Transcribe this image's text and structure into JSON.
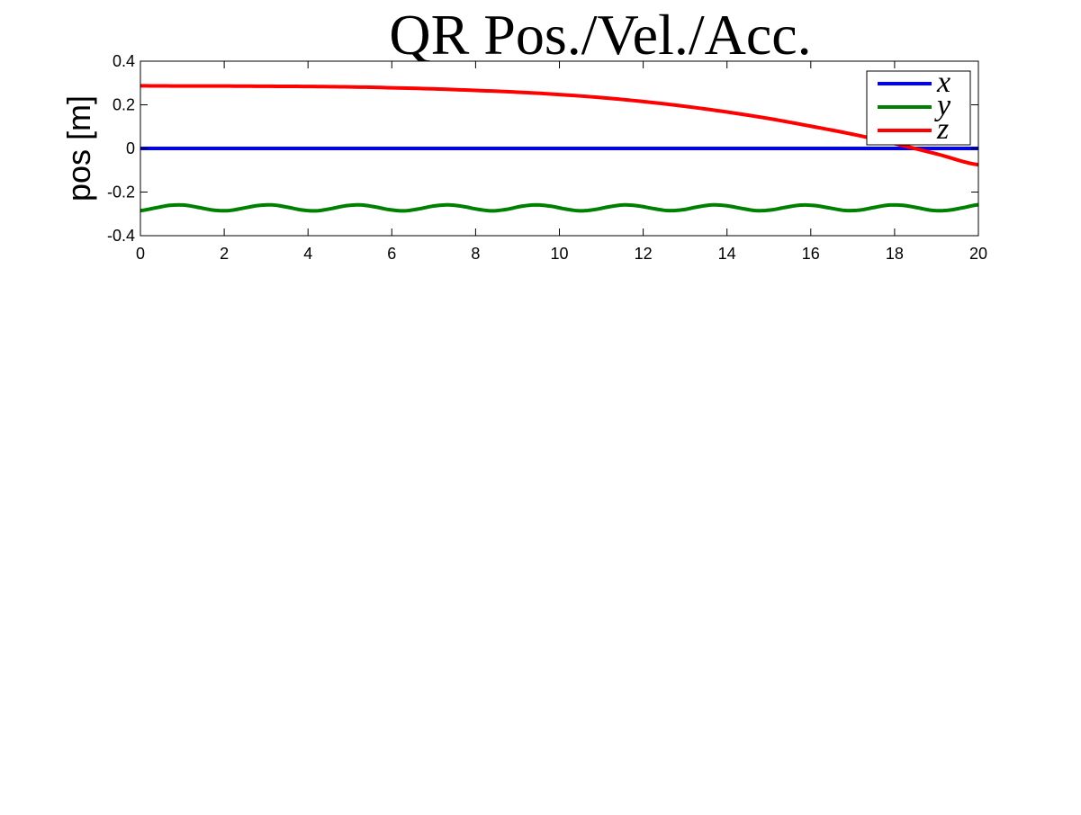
{
  "chart_data": {
    "type": "line",
    "title": "QR Pos./Vel./Acc.",
    "xlabel": "",
    "ylabel": "pos [m]",
    "xlim": [
      0,
      20
    ],
    "ylim": [
      -0.4,
      0.4
    ],
    "x_ticks": [
      0,
      2,
      4,
      6,
      8,
      10,
      12,
      14,
      16,
      18,
      20
    ],
    "x_tick_labels": [
      "0",
      "2",
      "4",
      "6",
      "8",
      "10",
      "12",
      "14",
      "16",
      "18",
      "20"
    ],
    "y_ticks": [
      -0.4,
      -0.2,
      0,
      0.2,
      0.4
    ],
    "y_tick_labels": [
      "-0.4",
      "-0.2",
      "0",
      "0.2",
      "0.4"
    ],
    "grid": false,
    "legend_position": "top-right",
    "series": [
      {
        "name": "x",
        "color": "#0000ff",
        "x": [
          0,
          20
        ],
        "y": [
          0,
          0
        ]
      },
      {
        "name": "y",
        "color": "#008000",
        "x": [
          0,
          0.35,
          0.7,
          1.05,
          1.4,
          1.75,
          2.1,
          2.45,
          2.8,
          3.15,
          3.5,
          3.85,
          4.2,
          4.55,
          4.9,
          5.25,
          5.6,
          5.95,
          6.3,
          6.65,
          7.0,
          7.35,
          7.7,
          8.05,
          8.4,
          8.75,
          9.1,
          9.45,
          9.8,
          10.15,
          10.5,
          10.85,
          11.2,
          11.55,
          11.9,
          12.25,
          12.6,
          12.95,
          13.3,
          13.65,
          14.0,
          14.35,
          14.7,
          15.05,
          15.4,
          15.75,
          16.1,
          16.45,
          16.8,
          17.15,
          17.5,
          17.85,
          18.2,
          18.55,
          18.9,
          19.25,
          19.6,
          20.0
        ],
        "y": [
          -0.285,
          -0.273,
          -0.261,
          -0.26,
          -0.271,
          -0.283,
          -0.285,
          -0.274,
          -0.262,
          -0.259,
          -0.269,
          -0.282,
          -0.286,
          -0.276,
          -0.263,
          -0.259,
          -0.268,
          -0.281,
          -0.286,
          -0.277,
          -0.264,
          -0.259,
          -0.266,
          -0.279,
          -0.286,
          -0.279,
          -0.265,
          -0.259,
          -0.265,
          -0.278,
          -0.286,
          -0.28,
          -0.267,
          -0.259,
          -0.264,
          -0.276,
          -0.285,
          -0.281,
          -0.268,
          -0.259,
          -0.263,
          -0.275,
          -0.285,
          -0.282,
          -0.27,
          -0.26,
          -0.262,
          -0.273,
          -0.284,
          -0.283,
          -0.271,
          -0.26,
          -0.261,
          -0.272,
          -0.284,
          -0.284,
          -0.273,
          -0.258
        ]
      },
      {
        "name": "z",
        "color": "#ff0000",
        "x": [
          0,
          1,
          2,
          3,
          4,
          5,
          6,
          7,
          8,
          9,
          10,
          11,
          12,
          13,
          14,
          15,
          16,
          17,
          18,
          19,
          20
        ],
        "y": [
          0.287,
          0.286,
          0.286,
          0.285,
          0.284,
          0.282,
          0.278,
          0.273,
          0.266,
          0.258,
          0.247,
          0.233,
          0.215,
          0.193,
          0.167,
          0.137,
          0.102,
          0.065,
          0.022,
          -0.025,
          -0.075
        ]
      }
    ]
  }
}
